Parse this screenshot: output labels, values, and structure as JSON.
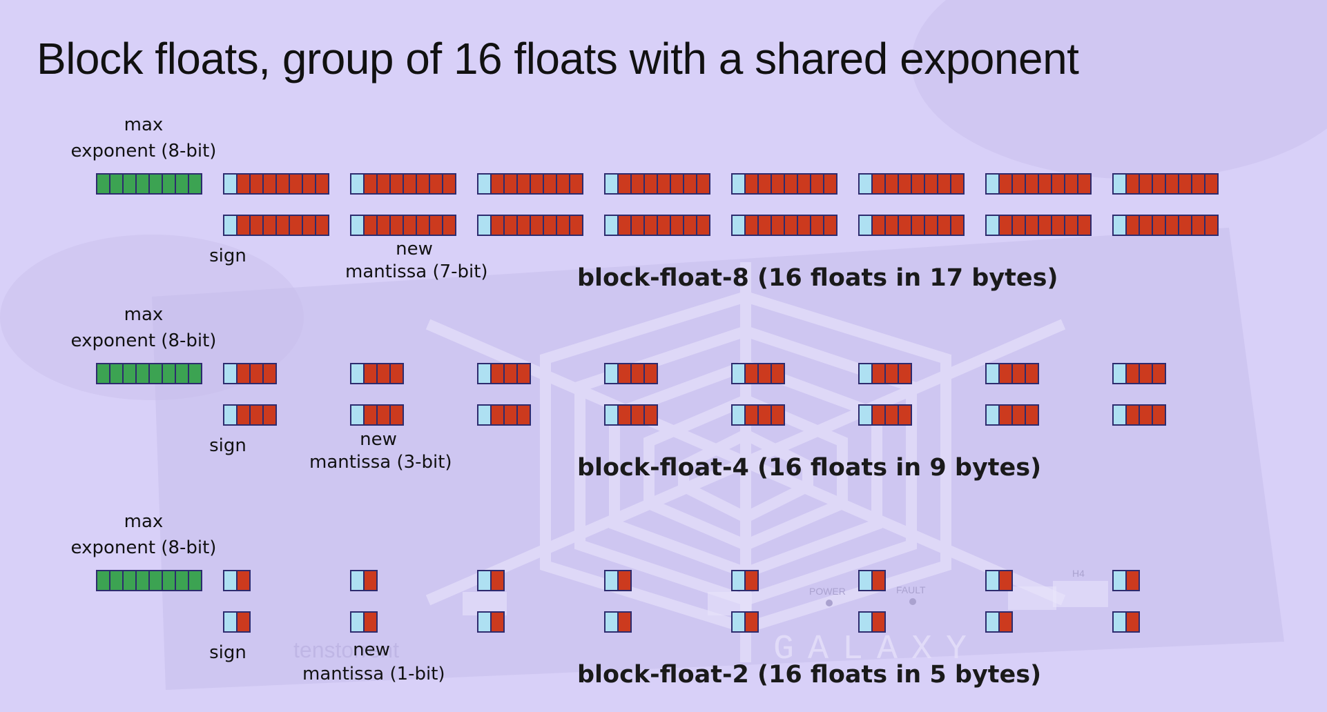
{
  "title": "Block floats, group of 16 floats with a shared exponent",
  "colors": {
    "exponent": "#3ca352",
    "sign": "#aee0f2",
    "mantissa": "#cc3a1e",
    "cell_border": "#2d2b6e",
    "background": "#d7cff7"
  },
  "background_marks": {
    "power": "POWER",
    "fault": "FAULT",
    "slot": "H4",
    "brand": "GALAXY",
    "maker": "tenstorrent"
  },
  "sections": [
    {
      "exponent_label_1": "max",
      "exponent_label_2": "exponent (8-bit)",
      "exponent_bits": 8,
      "mantissa_bits": 7,
      "floats_per_row": 8,
      "rows": 2,
      "sign_label": "sign",
      "mantissa_label_1": "new",
      "mantissa_label_2": "mantissa (7-bit)",
      "caption": "block-float-8 (16 floats in 17 bytes)"
    },
    {
      "exponent_label_1": "max",
      "exponent_label_2": "exponent (8-bit)",
      "exponent_bits": 8,
      "mantissa_bits": 3,
      "floats_per_row": 8,
      "rows": 2,
      "sign_label": "sign",
      "mantissa_label_1": "new",
      "mantissa_label_2": "mantissa (3-bit)",
      "caption": "block-float-4 (16 floats in 9 bytes)"
    },
    {
      "exponent_label_1": "max",
      "exponent_label_2": "exponent (8-bit)",
      "exponent_bits": 8,
      "mantissa_bits": 1,
      "floats_per_row": 8,
      "rows": 2,
      "sign_label": "sign",
      "mantissa_label_1": "new",
      "mantissa_label_2": "mantissa (1-bit)",
      "caption": "block-float-2 (16 floats in 5 bytes)"
    }
  ]
}
